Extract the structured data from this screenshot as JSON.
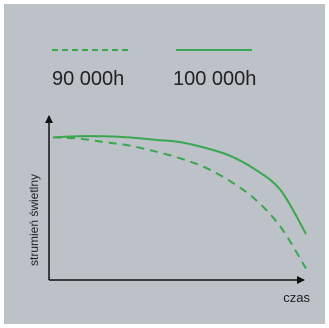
{
  "chart_data": {
    "type": "line",
    "xlabel": "czas",
    "ylabel": "strumień świetlny",
    "legend_position": "top",
    "grid": false,
    "axis_ticks": false,
    "series": [
      {
        "name": "90 000h",
        "style": "dashed",
        "color": "#3aa64f",
        "x": [
          0.0,
          0.1,
          0.2,
          0.3,
          0.4,
          0.5,
          0.6,
          0.7,
          0.8,
          0.9,
          1.0
        ],
        "y": [
          0.62,
          0.615,
          0.6,
          0.585,
          0.56,
          0.53,
          0.49,
          0.43,
          0.35,
          0.23,
          0.05
        ]
      },
      {
        "name": "100 000h",
        "style": "solid",
        "color": "#3aa64f",
        "x": [
          0.0,
          0.1,
          0.2,
          0.3,
          0.4,
          0.5,
          0.6,
          0.7,
          0.8,
          0.9,
          1.0
        ],
        "y": [
          0.62,
          0.625,
          0.625,
          0.62,
          0.61,
          0.6,
          0.575,
          0.54,
          0.48,
          0.39,
          0.2
        ]
      }
    ]
  },
  "colors": {
    "panel_background": "#bcc2c8",
    "series_color": "#3aa64f",
    "axis_color": "#111111"
  }
}
